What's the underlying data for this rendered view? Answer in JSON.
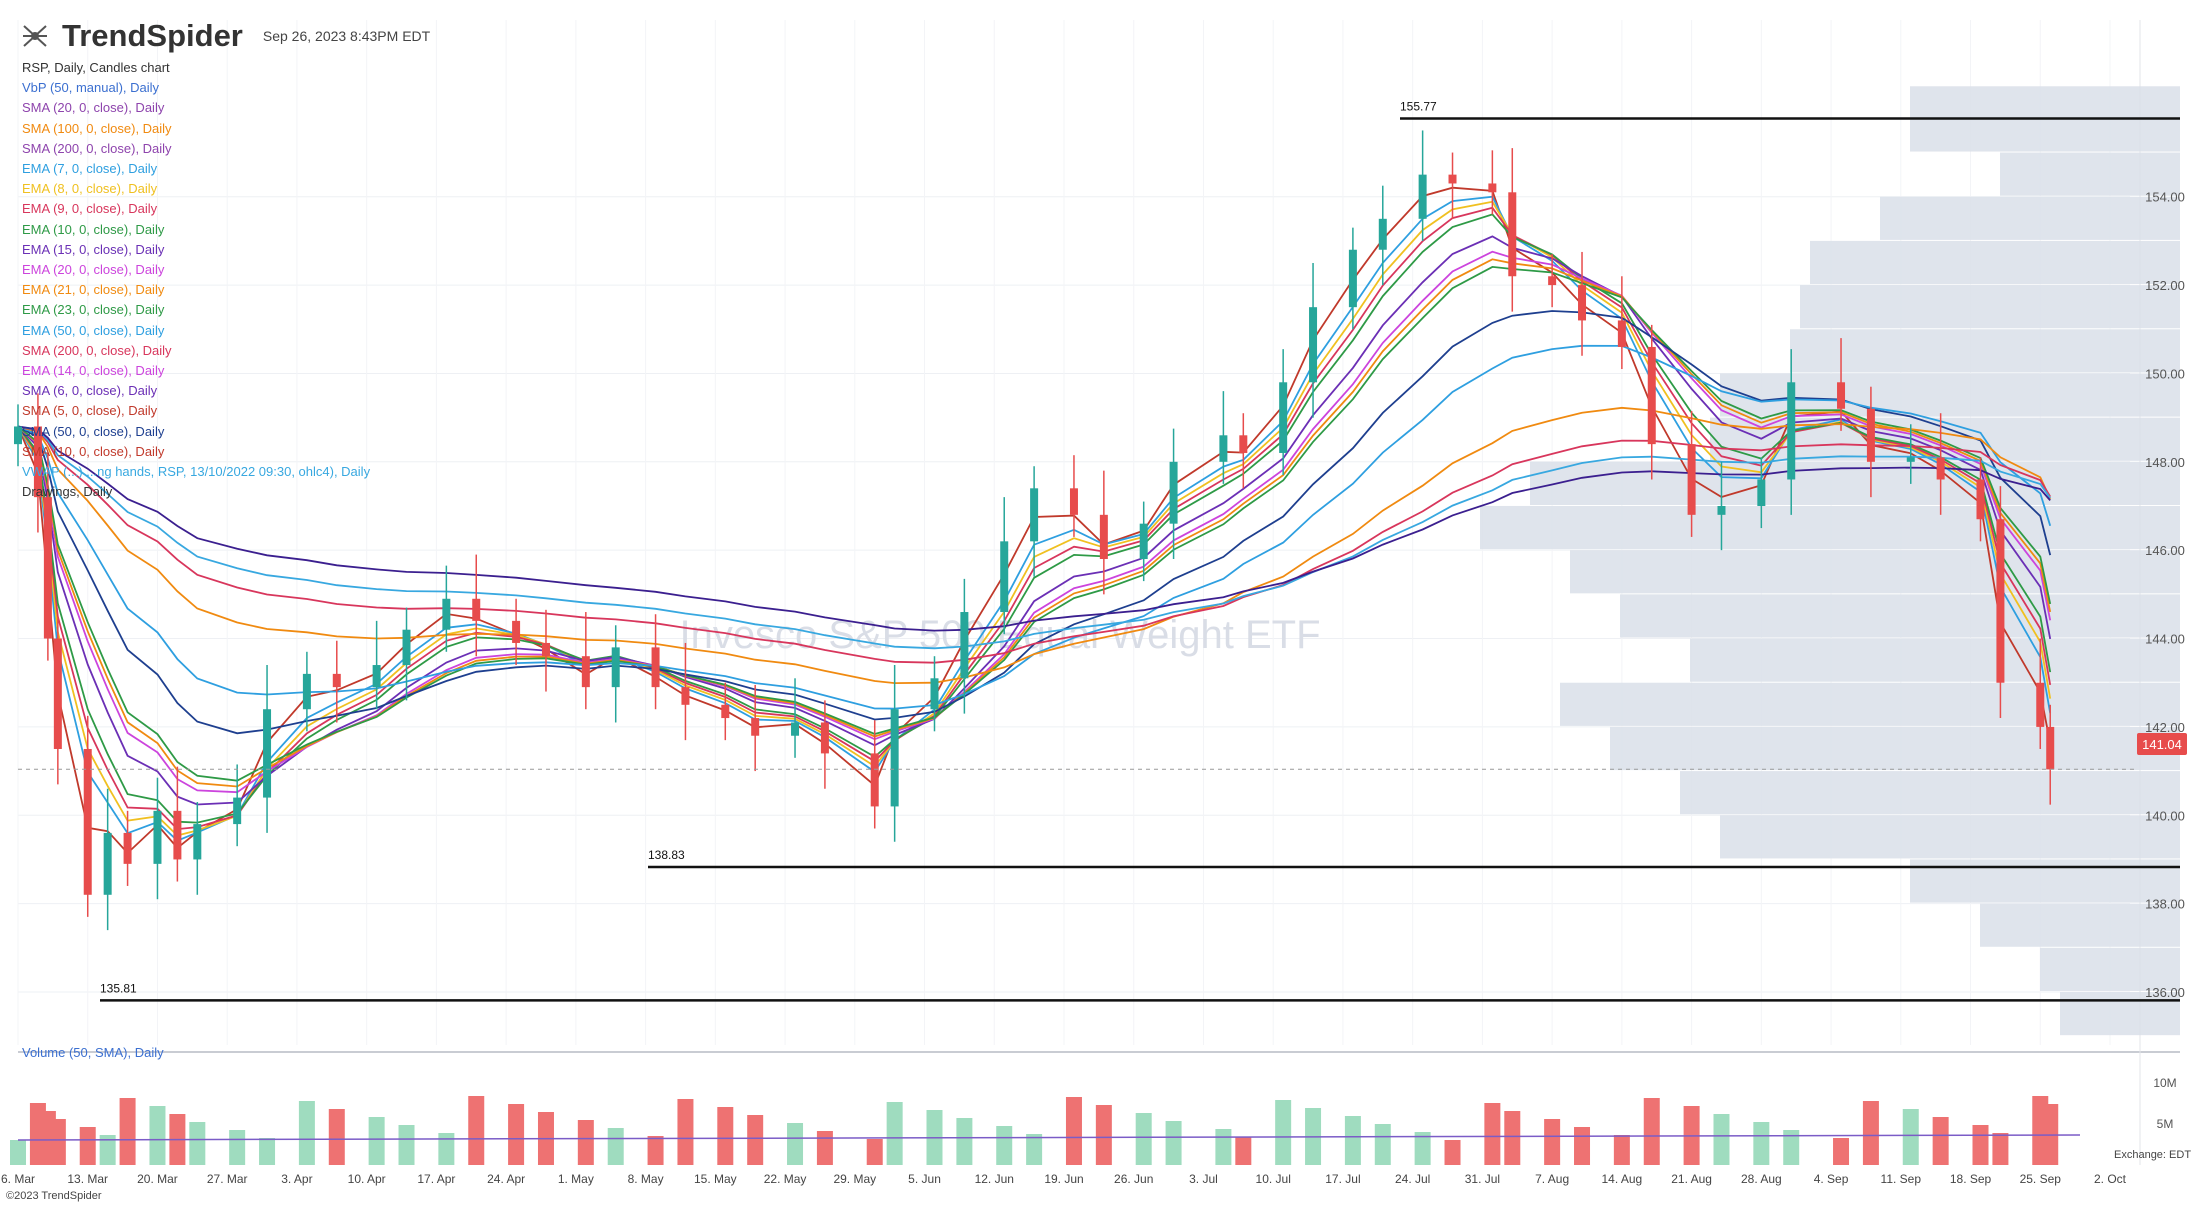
{
  "header": {
    "brand": "TrendSpider",
    "timestamp": "Sep 26, 2023 8:43PM EDT",
    "logo_icon": "trendspider-logo-icon"
  },
  "legend": [
    {
      "label": "RSP, Daily, Candles chart",
      "color": "#333333"
    },
    {
      "label": "VbP (50, manual), Daily",
      "color": "#3b6fd0"
    },
    {
      "label": "SMA (20, 0, close), Daily",
      "color": "#8e44ad"
    },
    {
      "label": "SMA (100, 0, close), Daily",
      "color": "#f08a10"
    },
    {
      "label": "SMA (200, 0, close), Daily",
      "color": "#8e44ad"
    },
    {
      "label": "EMA (7, 0, close), Daily",
      "color": "#2e9fe0"
    },
    {
      "label": "EMA (8, 0, close), Daily",
      "color": "#f0c020"
    },
    {
      "label": "EMA (9, 0, close), Daily",
      "color": "#d8365c"
    },
    {
      "label": "EMA (10, 0, close), Daily",
      "color": "#2e9a46"
    },
    {
      "label": "EMA (15, 0, close), Daily",
      "color": "#6b2fb5"
    },
    {
      "label": "EMA (20, 0, close), Daily",
      "color": "#cc44dd"
    },
    {
      "label": "EMA (21, 0, close), Daily",
      "color": "#f08a10"
    },
    {
      "label": "EMA (23, 0, close), Daily",
      "color": "#2e9a46"
    },
    {
      "label": "EMA (50, 0, close), Daily",
      "color": "#2e9fe0"
    },
    {
      "label": "SMA (200, 0, close), Daily",
      "color": "#d8365c"
    },
    {
      "label": "EMA (14, 0, close), Daily",
      "color": "#cc44dd"
    },
    {
      "label": "SMA (6, 0, close), Daily",
      "color": "#6b2fb5"
    },
    {
      "label": "SMA (5, 0, close), Daily",
      "color": "#c0392b"
    },
    {
      "label": "SMA (50, 0, close), Daily",
      "color": "#1e3f8f"
    },
    {
      "label": "SMA (10, 0, close), Daily",
      "color": "#c0392b"
    },
    {
      "label": "VWAP (...) ...ng hands, RSP, 13/10/2022 09:30, ohlc4), Daily",
      "color": "#38a8e0"
    },
    {
      "label": "Drawings, Daily",
      "color": "#333333"
    }
  ],
  "volume_label": "Volume (50, SMA), Daily",
  "copyright": "©2023 TrendSpider",
  "exchange": "Exchange: EDT",
  "watermark": "Invesco S&P 500 Equal Weight ETF",
  "chart_data": {
    "type": "candlestick",
    "symbol": "RSP",
    "interval": "Daily",
    "last_price": "141.04",
    "ylim": [
      134.8,
      158.0
    ],
    "y_ticks": [
      "154.00",
      "152.00",
      "150.00",
      "148.00",
      "146.00",
      "144.00",
      "142.00",
      "140.00",
      "138.00",
      "136.00"
    ],
    "volume_ticks": [
      "10M",
      "5M"
    ],
    "x_tick_labels": [
      "6. Mar",
      "13. Mar",
      "20. Mar",
      "27. Mar",
      "3. Apr",
      "10. Apr",
      "17. Apr",
      "24. Apr",
      "1. May",
      "8. May",
      "15. May",
      "22. May",
      "29. May",
      "5. Jun",
      "12. Jun",
      "19. Jun",
      "26. Jun",
      "3. Jul",
      "10. Jul",
      "17. Jul",
      "24. Jul",
      "31. Jul",
      "7. Aug",
      "14. Aug",
      "21. Aug",
      "28. Aug",
      "4. Sep",
      "11. Sep",
      "18. Sep",
      "25. Sep",
      "2. Oct"
    ],
    "levels": [
      {
        "label": "155.77",
        "value": 155.77
      },
      {
        "label": "138.83",
        "value": 138.83
      },
      {
        "label": "135.81",
        "value": 135.81
      }
    ],
    "close_points": [
      [
        "2023-03-06",
        148.8
      ],
      [
        "2023-03-08",
        147.2
      ],
      [
        "2023-03-09",
        144.0
      ],
      [
        "2023-03-10",
        141.5
      ],
      [
        "2023-03-13",
        138.2
      ],
      [
        "2023-03-15",
        139.6
      ],
      [
        "2023-03-17",
        138.9
      ],
      [
        "2023-03-20",
        140.1
      ],
      [
        "2023-03-22",
        139.0
      ],
      [
        "2023-03-24",
        139.8
      ],
      [
        "2023-03-28",
        140.4
      ],
      [
        "2023-03-31",
        142.4
      ],
      [
        "2023-04-04",
        143.2
      ],
      [
        "2023-04-07",
        142.9
      ],
      [
        "2023-04-11",
        143.4
      ],
      [
        "2023-04-14",
        144.2
      ],
      [
        "2023-04-18",
        144.9
      ],
      [
        "2023-04-21",
        144.4
      ],
      [
        "2023-04-25",
        143.9
      ],
      [
        "2023-04-28",
        143.6
      ],
      [
        "2023-05-02",
        142.9
      ],
      [
        "2023-05-05",
        143.8
      ],
      [
        "2023-05-09",
        142.9
      ],
      [
        "2023-05-12",
        142.5
      ],
      [
        "2023-05-16",
        142.2
      ],
      [
        "2023-05-19",
        141.8
      ],
      [
        "2023-05-23",
        142.1
      ],
      [
        "2023-05-26",
        141.4
      ],
      [
        "2023-05-31",
        140.2
      ],
      [
        "2023-06-02",
        142.4
      ],
      [
        "2023-06-06",
        143.1
      ],
      [
        "2023-06-09",
        144.6
      ],
      [
        "2023-06-13",
        146.2
      ],
      [
        "2023-06-16",
        147.4
      ],
      [
        "2023-06-20",
        146.8
      ],
      [
        "2023-06-23",
        145.8
      ],
      [
        "2023-06-27",
        146.6
      ],
      [
        "2023-06-30",
        148.0
      ],
      [
        "2023-07-05",
        148.6
      ],
      [
        "2023-07-07",
        148.2
      ],
      [
        "2023-07-11",
        149.8
      ],
      [
        "2023-07-14",
        151.5
      ],
      [
        "2023-07-18",
        152.8
      ],
      [
        "2023-07-21",
        153.5
      ],
      [
        "2023-07-25",
        154.5
      ],
      [
        "2023-07-28",
        154.3
      ],
      [
        "2023-08-01",
        154.1
      ],
      [
        "2023-08-03",
        152.2
      ],
      [
        "2023-08-07",
        152.0
      ],
      [
        "2023-08-10",
        151.2
      ],
      [
        "2023-08-14",
        150.6
      ],
      [
        "2023-08-17",
        148.4
      ],
      [
        "2023-08-21",
        146.8
      ],
      [
        "2023-08-24",
        147.0
      ],
      [
        "2023-08-28",
        147.6
      ],
      [
        "2023-08-31",
        149.8
      ],
      [
        "2023-09-05",
        149.2
      ],
      [
        "2023-09-08",
        148.0
      ],
      [
        "2023-09-12",
        148.1
      ],
      [
        "2023-09-15",
        147.6
      ],
      [
        "2023-09-19",
        146.7
      ],
      [
        "2023-09-21",
        143.0
      ],
      [
        "2023-09-25",
        142.0
      ],
      [
        "2023-09-26",
        141.04
      ]
    ],
    "volume_by_profile_ranges": [
      [
        155.0,
        156.5
      ],
      [
        154.0,
        155.0
      ],
      [
        153.0,
        154.0
      ],
      [
        152.0,
        153.0
      ],
      [
        151.0,
        152.0
      ],
      [
        150.0,
        151.0
      ],
      [
        149.0,
        150.0
      ],
      [
        148.0,
        149.0
      ],
      [
        147.0,
        148.0
      ],
      [
        146.0,
        147.0
      ],
      [
        145.0,
        146.0
      ],
      [
        144.0,
        145.0
      ],
      [
        143.0,
        144.0
      ],
      [
        142.0,
        143.0
      ],
      [
        141.0,
        142.0
      ],
      [
        140.0,
        141.0
      ],
      [
        139.0,
        140.0
      ],
      [
        138.0,
        139.0
      ],
      [
        137.0,
        138.0
      ],
      [
        136.0,
        137.0
      ],
      [
        135.0,
        136.0
      ]
    ]
  }
}
